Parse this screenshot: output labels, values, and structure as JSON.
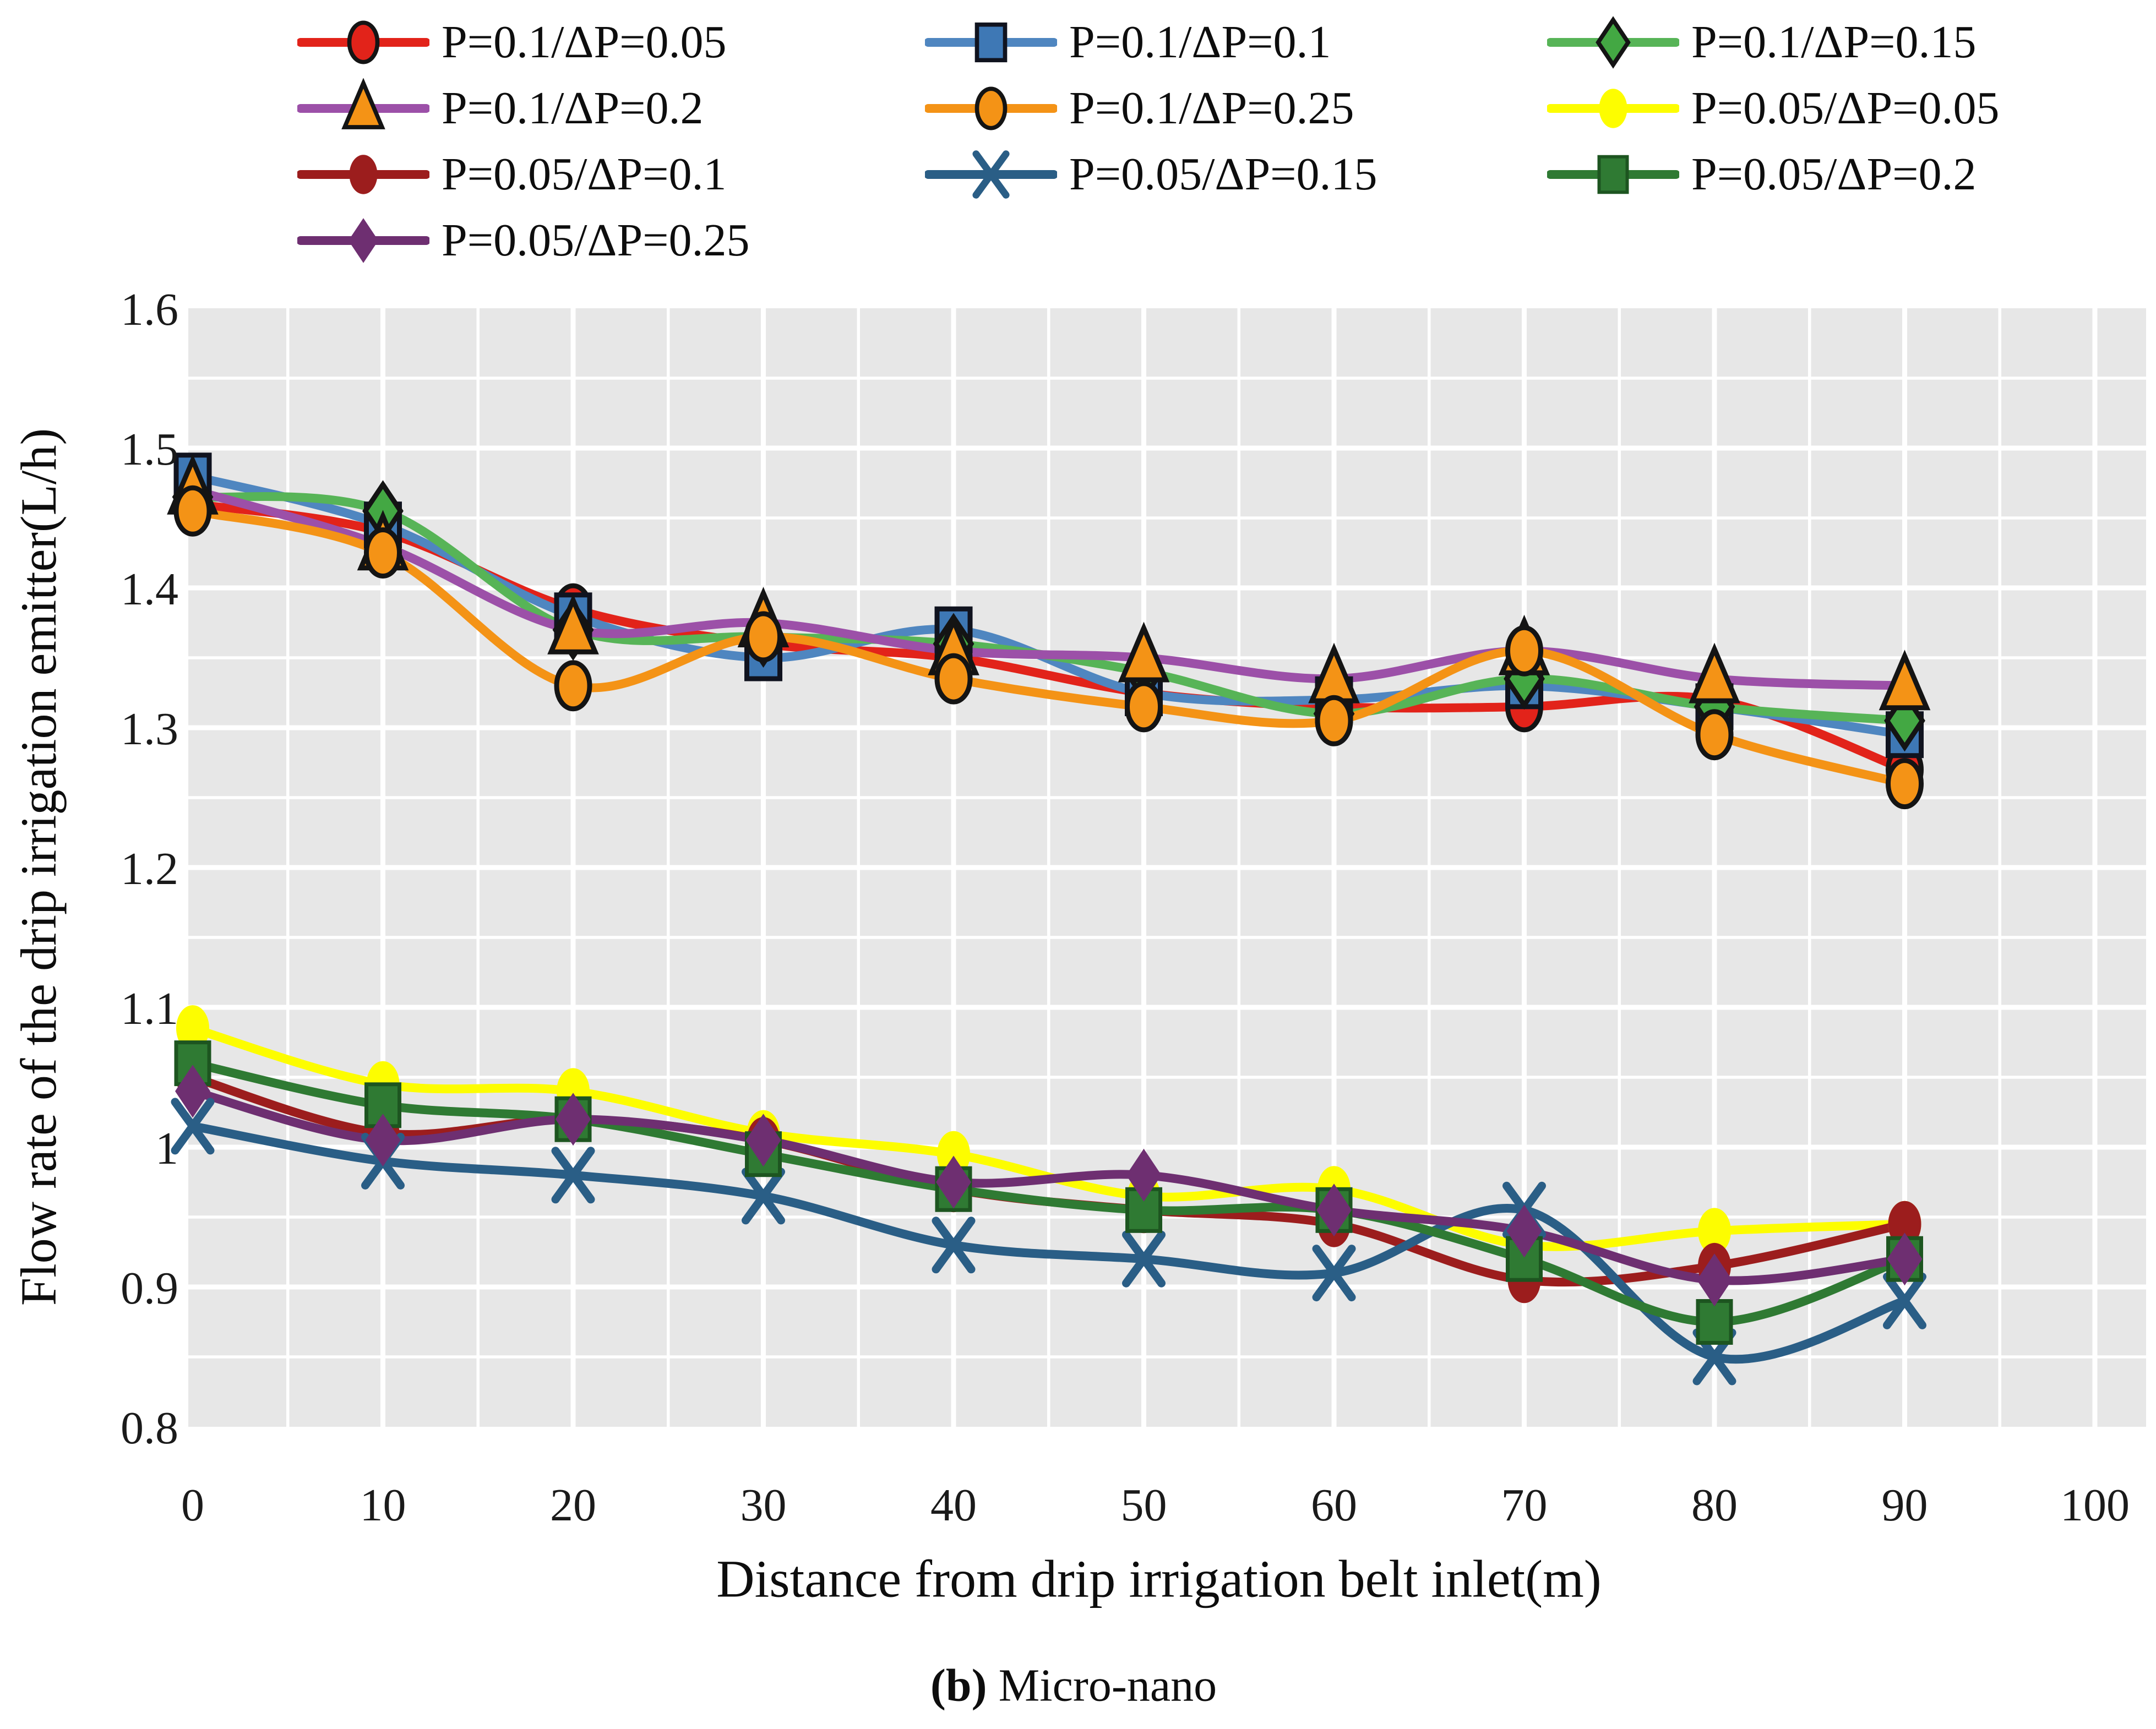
{
  "figure": {
    "caption_prefix": "(b)",
    "caption_text": " Micro-nano"
  },
  "chart_data": {
    "type": "line",
    "title": "",
    "xlabel": "Distance from drip irrigation belt inlet(m)",
    "ylabel": "Flow rate of the drip irrigation emitter(L/h)",
    "xlim": [
      0,
      100
    ],
    "ylim": [
      0.8,
      1.6
    ],
    "x": [
      0,
      10,
      20,
      30,
      40,
      50,
      60,
      70,
      80,
      90
    ],
    "x_ticks": [
      0,
      10,
      20,
      30,
      40,
      50,
      60,
      70,
      80,
      90,
      100
    ],
    "x_tick_labels": [
      "0",
      "10",
      "20",
      "30",
      "40",
      "50",
      "60",
      "70",
      "80",
      "90",
      "100"
    ],
    "y_ticks": [
      1.6,
      1.5,
      1.4,
      1.3,
      1.2,
      1.1,
      1.0,
      0.9,
      0.8
    ],
    "y_tick_labels": [
      "1.6",
      "1.5",
      "1.4",
      "1.3",
      "1.2",
      "1.1",
      "1",
      "0.9",
      "0.8"
    ],
    "grid": {
      "x_minor_step": 5,
      "y_minor_step": 0.05,
      "line_color": "#ffffff",
      "plot_bg": "#e7e7e7"
    },
    "legend_position": "top",
    "series": [
      {
        "name": "P=0.1/ΔP=0.05",
        "marker": "circle",
        "line_color": "#e2231a",
        "marker_fill": "#e2231a",
        "marker_stroke": "#141414",
        "marker_stroke_width": 9,
        "values": [
          1.46,
          1.44,
          1.385,
          1.36,
          1.35,
          1.325,
          1.315,
          1.315,
          1.32,
          1.27
        ]
      },
      {
        "name": "P=0.1/ΔP=0.1",
        "marker": "square",
        "line_color": "#4f86c0",
        "marker_fill": "#3e78b5",
        "marker_stroke": "#10131f",
        "marker_stroke_width": 9,
        "values": [
          1.48,
          1.445,
          1.38,
          1.35,
          1.37,
          1.325,
          1.32,
          1.33,
          1.315,
          1.295
        ]
      },
      {
        "name": "P=0.1/ΔP=0.15",
        "marker": "diamond",
        "line_color": "#57b457",
        "marker_fill": "#43a843",
        "marker_stroke": "#141414",
        "marker_stroke_width": 9,
        "values": [
          1.465,
          1.455,
          1.37,
          1.365,
          1.36,
          1.34,
          1.31,
          1.335,
          1.315,
          1.305
        ]
      },
      {
        "name": "P=0.1/ΔP=0.2",
        "marker": "triangle",
        "line_color": "#9c50a8",
        "marker_fill": "#f49316",
        "marker_stroke": "#141414",
        "marker_stroke_width": 9,
        "values": [
          1.47,
          1.43,
          1.37,
          1.375,
          1.355,
          1.35,
          1.335,
          1.355,
          1.335,
          1.33
        ]
      },
      {
        "name": "P=0.1/ΔP=0.25",
        "marker": "circle",
        "line_color": "#f49316",
        "marker_fill": "#f49316",
        "marker_stroke": "#141414",
        "marker_stroke_width": 9,
        "values": [
          1.455,
          1.425,
          1.33,
          1.365,
          1.335,
          1.315,
          1.305,
          1.355,
          1.295,
          1.26
        ]
      },
      {
        "name": "P=0.05/ΔP=0.05",
        "marker": "circle",
        "line_color": "#fdfd00",
        "marker_fill": "#fdfd00",
        "marker_stroke": "none",
        "marker_stroke_width": 0,
        "values": [
          1.085,
          1.045,
          1.04,
          1.01,
          0.995,
          0.965,
          0.97,
          0.93,
          0.94,
          0.945
        ]
      },
      {
        "name": "P=0.05/ΔP=0.1",
        "marker": "circle",
        "line_color": "#9c1d1d",
        "marker_fill": "#9c1d1d",
        "marker_stroke": "none",
        "marker_stroke_width": 0,
        "values": [
          1.05,
          1.01,
          1.02,
          1.005,
          0.97,
          0.955,
          0.945,
          0.905,
          0.915,
          0.945
        ]
      },
      {
        "name": "P=0.05/ΔP=0.15",
        "marker": "x",
        "line_color": "#2a5e86",
        "marker_fill": "none",
        "marker_stroke": "#2a5e86",
        "marker_stroke_width": 15,
        "values": [
          1.015,
          0.99,
          0.98,
          0.965,
          0.93,
          0.92,
          0.91,
          0.955,
          0.85,
          0.89
        ]
      },
      {
        "name": "P=0.05/ΔP=0.2",
        "marker": "square",
        "line_color": "#2f7a33",
        "marker_fill": "#2f7a33",
        "marker_stroke": "#1d5520",
        "marker_stroke_width": 7,
        "values": [
          1.06,
          1.03,
          1.02,
          0.995,
          0.97,
          0.955,
          0.955,
          0.92,
          0.875,
          0.92
        ]
      },
      {
        "name": "P=0.05/ΔP=0.25",
        "marker": "diamond",
        "line_color": "#6e2f71",
        "marker_fill": "#6e2f71",
        "marker_stroke": "none",
        "marker_stroke_width": 0,
        "values": [
          1.04,
          1.005,
          1.02,
          1.005,
          0.975,
          0.98,
          0.955,
          0.94,
          0.905,
          0.92
        ]
      }
    ]
  }
}
